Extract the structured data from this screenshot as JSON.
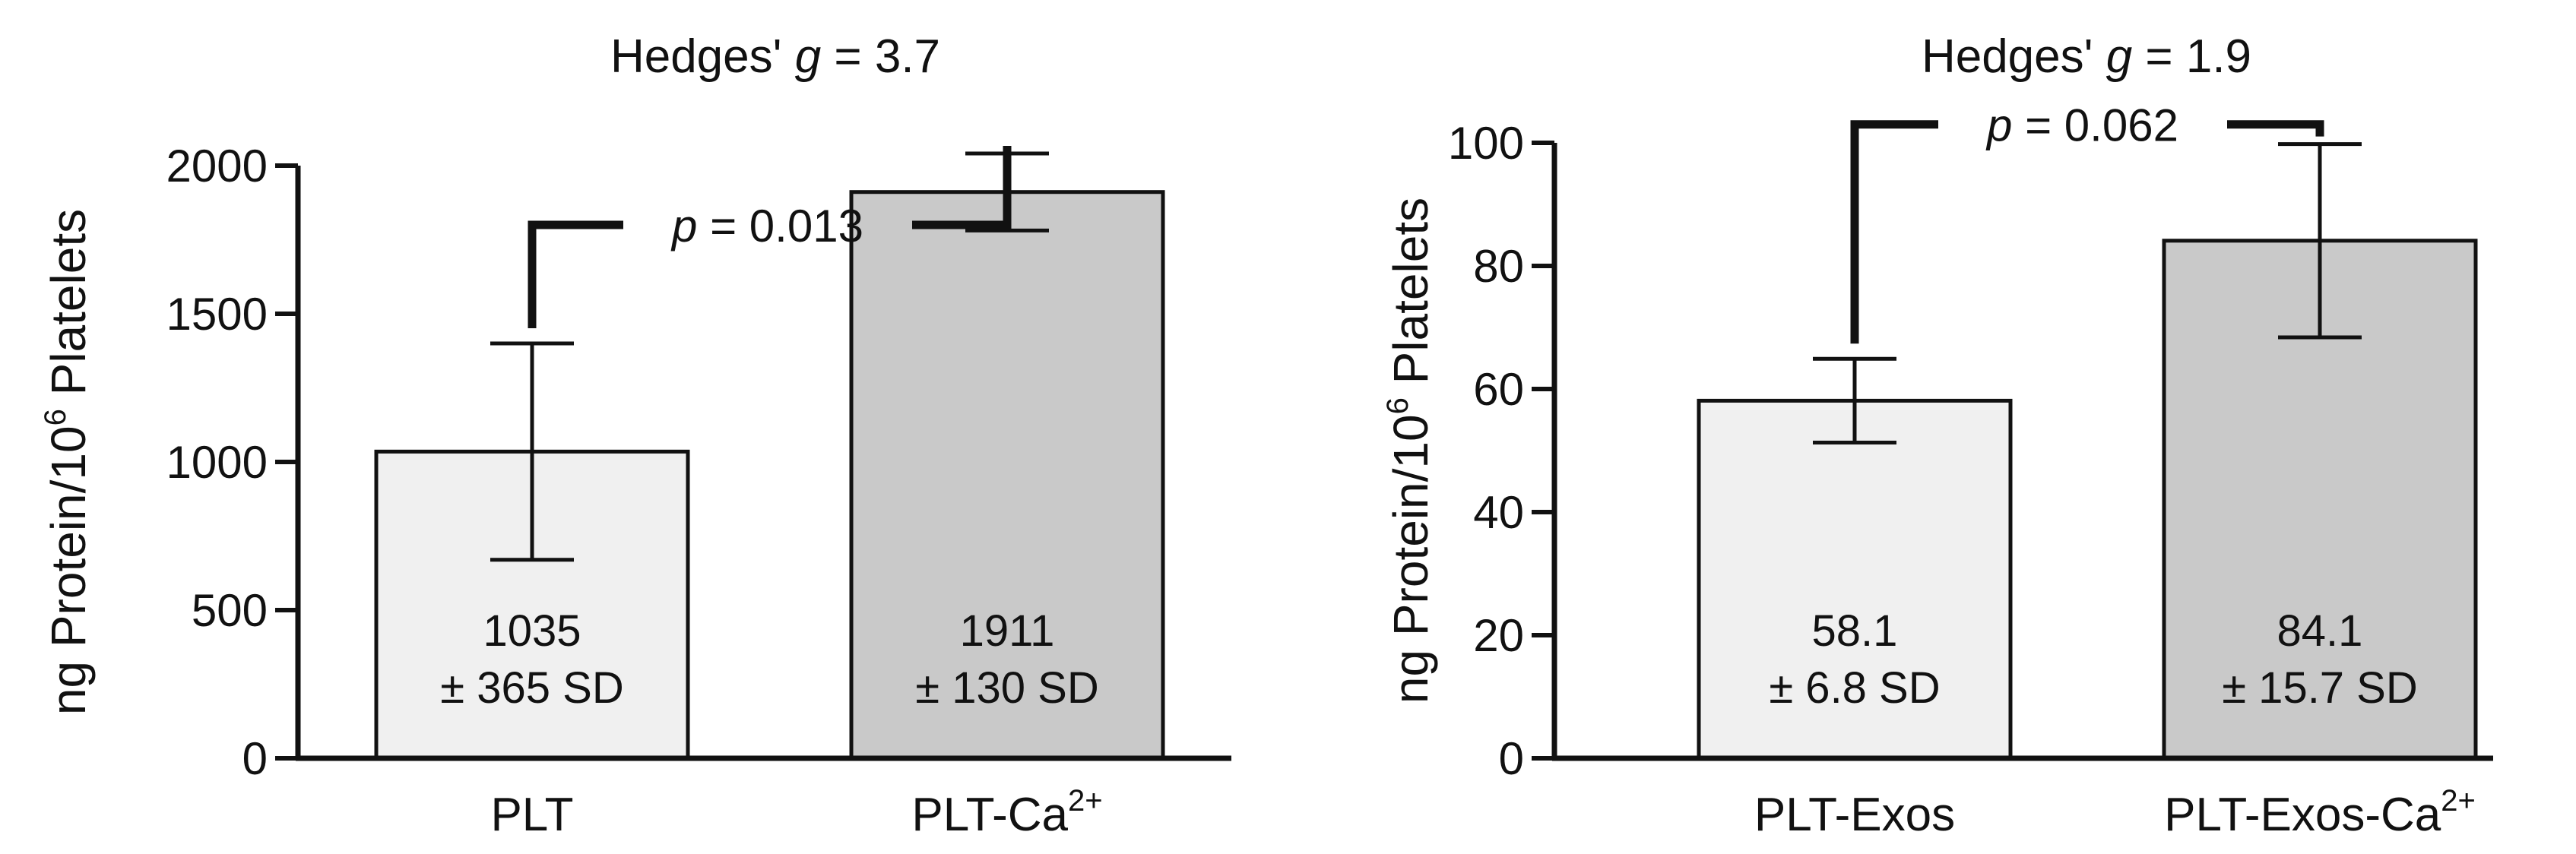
{
  "chart_data": [
    {
      "type": "bar",
      "ylabel_pre": "ng Protein/10",
      "ylabel_sup": "6",
      "ylabel_post": " Platelets",
      "ylim": [
        0,
        2000
      ],
      "yticks": [
        0,
        500,
        1000,
        1500,
        2000
      ],
      "ytick_labels": [
        "0",
        "500",
        "1000",
        "1500",
        "2000"
      ],
      "categories": [
        {
          "main": "PLT",
          "sup": ""
        },
        {
          "main": "PLT-Ca",
          "sup": "2+"
        }
      ],
      "values": [
        1035,
        1911
      ],
      "sd": [
        365,
        130
      ],
      "bar_colors": [
        "#f0f0f0",
        "#c9c9c9"
      ],
      "labels": [
        {
          "line1": "1035",
          "line2": "± 365 SD"
        },
        {
          "line1": "1911",
          "line2": "± 130 SD"
        }
      ],
      "hedges": {
        "prefix": "Hedges' ",
        "g": "g",
        "rest": " = 3.7"
      },
      "pvalue": {
        "p": "p",
        "rest": " = 0.013"
      },
      "bracket_y": 1800
    },
    {
      "type": "bar",
      "ylabel_pre": "ng Protein/10",
      "ylabel_sup": "6",
      "ylabel_post": " Platelets",
      "ylim": [
        0,
        100
      ],
      "yticks": [
        0,
        20,
        40,
        60,
        80,
        100
      ],
      "ytick_labels": [
        "0",
        "20",
        "40",
        "60",
        "80",
        "100"
      ],
      "categories": [
        {
          "main": "PLT-Exos",
          "sup": ""
        },
        {
          "main": "PLT-Exos-Ca",
          "sup": "2+"
        }
      ],
      "values": [
        58.1,
        84.1
      ],
      "sd": [
        6.8,
        15.7
      ],
      "bar_colors": [
        "#f0f0f0",
        "#c9c9c9"
      ],
      "labels": [
        {
          "line1": "58.1",
          "line2": "± 6.8 SD"
        },
        {
          "line1": "84.1",
          "line2": "± 15.7 SD"
        }
      ],
      "hedges": {
        "prefix": "Hedges' ",
        "g": "g",
        "rest": " = 1.9"
      },
      "pvalue": {
        "p": "p",
        "rest": " = 0.062"
      },
      "bracket_y": 103
    }
  ]
}
